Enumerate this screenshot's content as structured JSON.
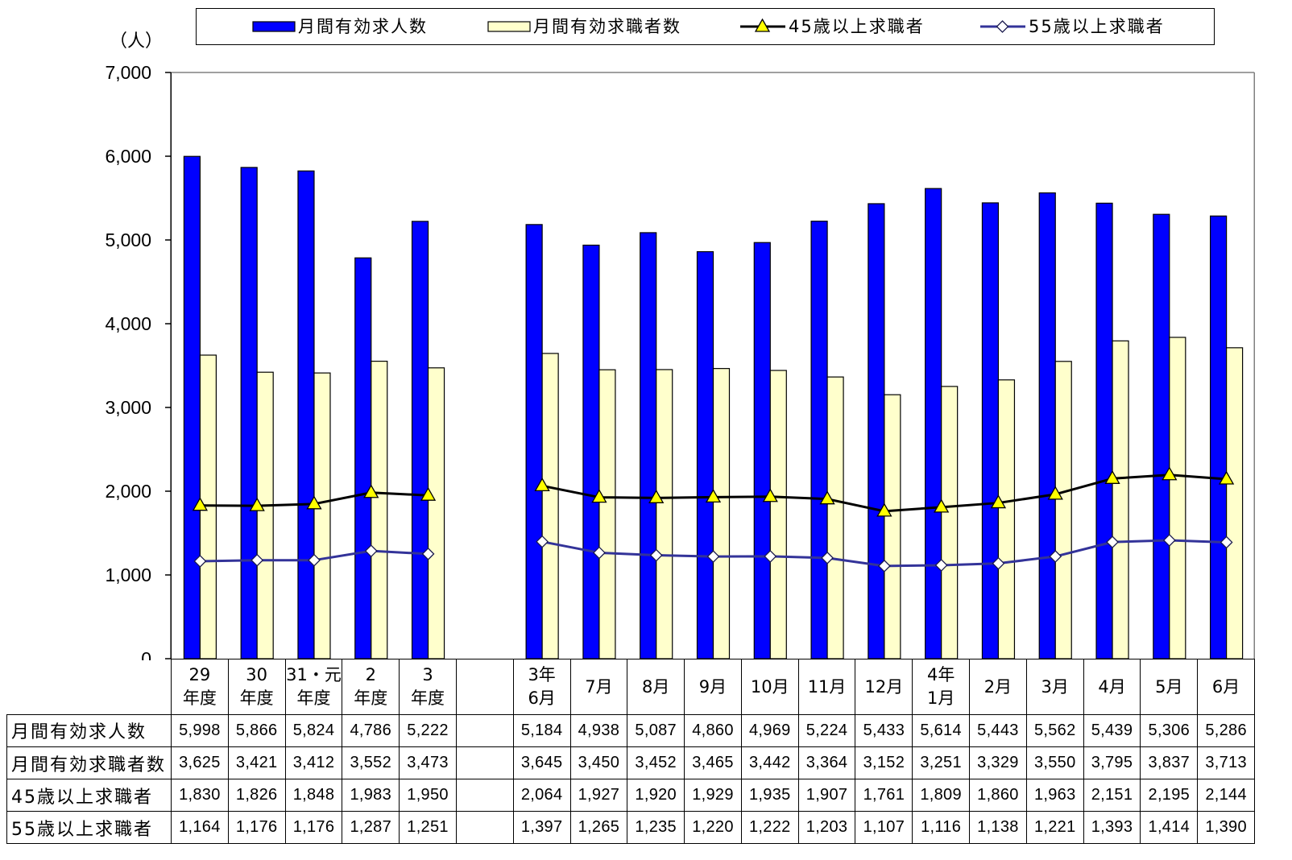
{
  "chart_data": {
    "type": "bar",
    "ylabel": "（人）",
    "ylim": [
      0,
      7000
    ],
    "yticks": [
      0,
      1000,
      2000,
      3000,
      4000,
      5000,
      6000,
      7000
    ],
    "legend": "top",
    "grid": false,
    "data_table": true,
    "categories": [
      "29\n年度",
      "30\n年度",
      "31・元\n年度",
      "2\n年度",
      "3\n年度",
      "",
      "3年\n6月",
      "7月",
      "8月",
      "9月",
      "10月",
      "11月",
      "12月",
      "4年\n1月",
      "2月",
      "3月",
      "4月",
      "5月",
      "6月"
    ],
    "series": [
      {
        "name": "月間有効求人数",
        "type": "bar",
        "color": "#0000ff",
        "values": [
          5998,
          5866,
          5824,
          4786,
          5222,
          null,
          5184,
          4938,
          5087,
          4860,
          4969,
          5224,
          5433,
          5614,
          5443,
          5562,
          5439,
          5306,
          5286
        ]
      },
      {
        "name": "月間有効求職者数",
        "type": "bar",
        "color": "#ffffcc",
        "values": [
          3625,
          3421,
          3412,
          3552,
          3473,
          null,
          3645,
          3450,
          3452,
          3465,
          3442,
          3364,
          3152,
          3251,
          3329,
          3550,
          3795,
          3837,
          3713
        ]
      },
      {
        "name": "45歳以上求職者",
        "type": "line",
        "color": "#000000",
        "marker": "triangle",
        "marker_color": "#ffff00",
        "marker_edge": "#000000",
        "values": [
          1830,
          1826,
          1848,
          1983,
          1950,
          null,
          2064,
          1927,
          1920,
          1929,
          1935,
          1907,
          1761,
          1809,
          1860,
          1963,
          2151,
          2195,
          2144
        ]
      },
      {
        "name": "55歳以上求職者",
        "type": "line",
        "color": "#333399",
        "marker": "diamond",
        "marker_color": "#ffffff",
        "marker_edge": "#1a1a4d",
        "values": [
          1164,
          1176,
          1176,
          1287,
          1251,
          null,
          1397,
          1265,
          1235,
          1220,
          1222,
          1203,
          1107,
          1116,
          1138,
          1221,
          1393,
          1414,
          1390
        ]
      }
    ]
  }
}
